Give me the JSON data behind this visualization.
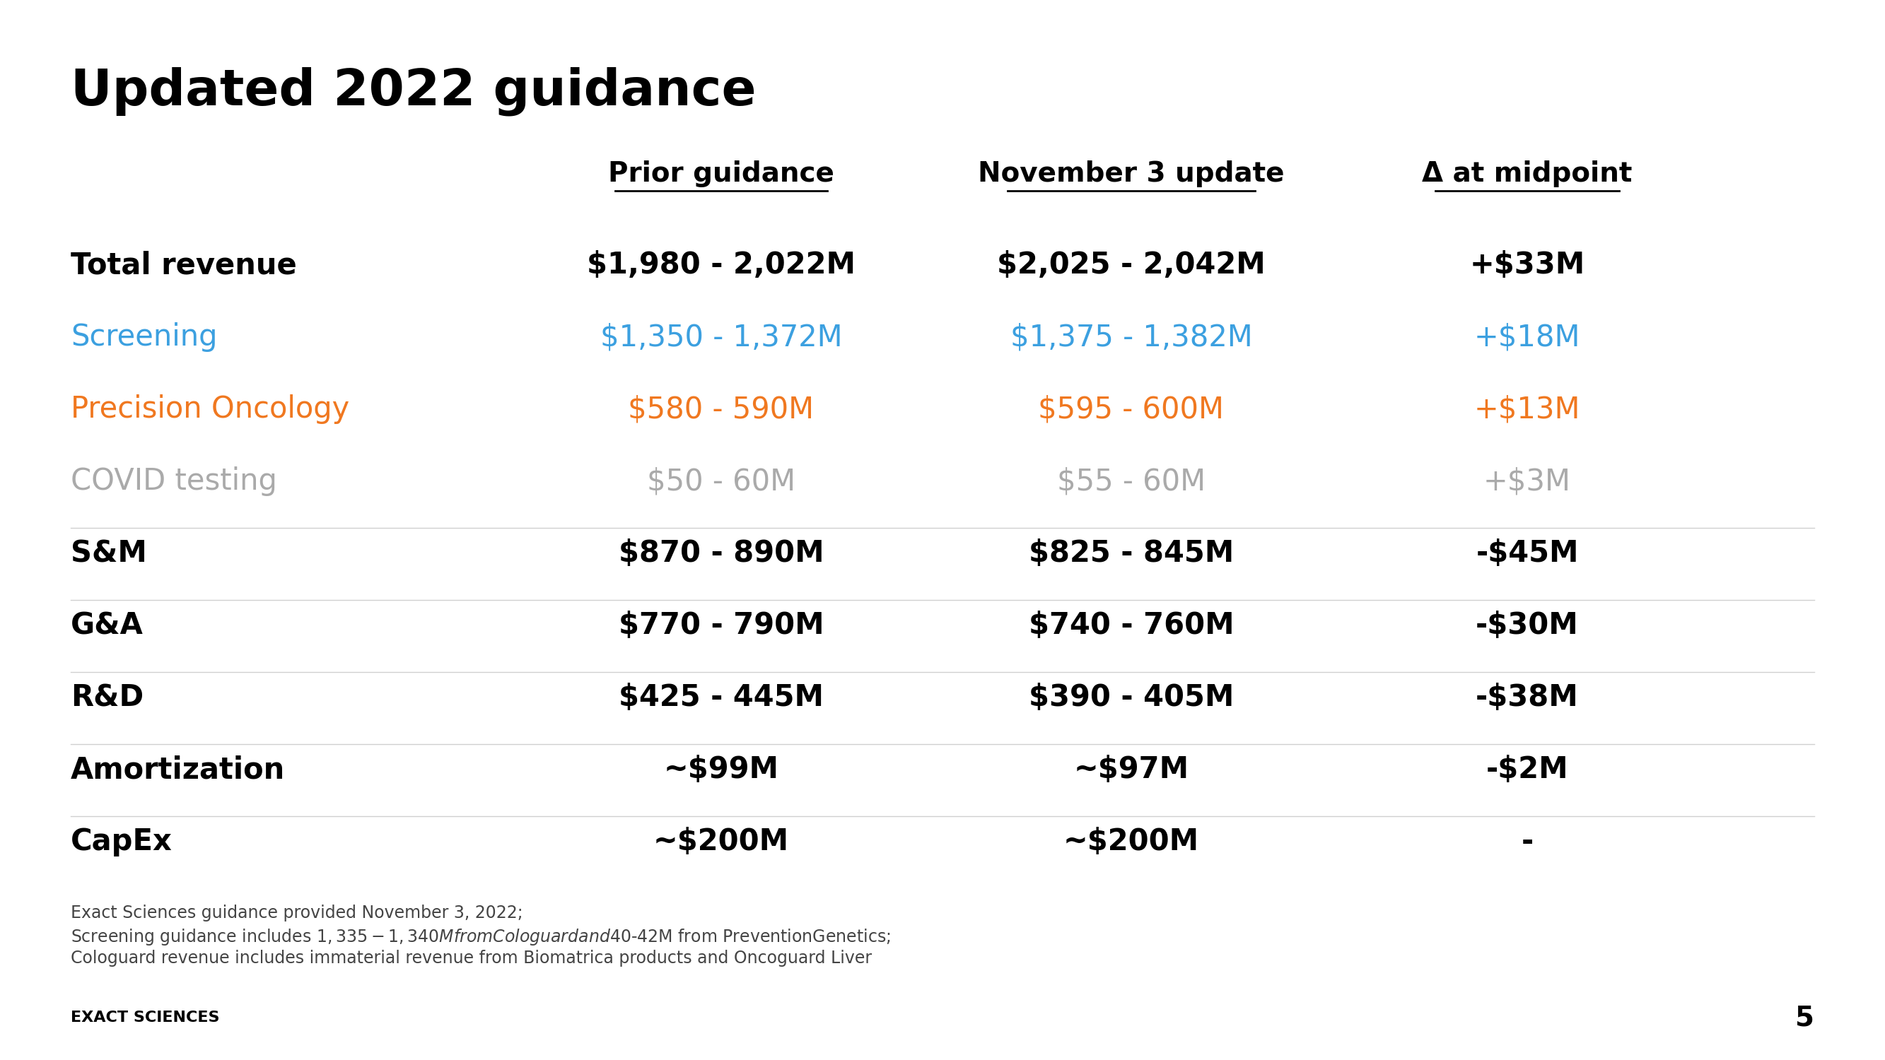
{
  "title": "Updated 2022 guidance",
  "background_color": "#ffffff",
  "title_color": "#000000",
  "title_fontsize": 52,
  "headers": [
    "",
    "Prior guidance",
    "November 3 update",
    "Δ at midpoint"
  ],
  "rows": [
    {
      "label": "Total revenue",
      "prior": "$1,980 - 2,022M",
      "nov3": "$2,025 - 2,042M",
      "delta": "+$33M",
      "label_color": "#000000",
      "data_color": "#000000",
      "label_bold": true,
      "data_bold": true,
      "separator_above": false,
      "indent": false
    },
    {
      "label": "Screening",
      "prior": "$1,350 - 1,372M",
      "nov3": "$1,375 - 1,382M",
      "delta": "+$18M",
      "label_color": "#3ca0e0",
      "data_color": "#3ca0e0",
      "label_bold": false,
      "data_bold": false,
      "separator_above": false,
      "indent": false
    },
    {
      "label": "Precision Oncology",
      "prior": "$580 - 590M",
      "nov3": "$595 - 600M",
      "delta": "+$13M",
      "label_color": "#f07820",
      "data_color": "#f07820",
      "label_bold": false,
      "data_bold": false,
      "separator_above": false,
      "indent": false
    },
    {
      "label": "COVID testing",
      "prior": "$50 - 60M",
      "nov3": "$55 - 60M",
      "delta": "+$3M",
      "label_color": "#aaaaaa",
      "data_color": "#aaaaaa",
      "label_bold": false,
      "data_bold": false,
      "separator_above": false,
      "indent": false
    },
    {
      "label": "S&M",
      "prior": "$870 - 890M",
      "nov3": "$825 - 845M",
      "delta": "-$45M",
      "label_color": "#000000",
      "data_color": "#000000",
      "label_bold": true,
      "data_bold": true,
      "separator_above": true,
      "indent": false
    },
    {
      "label": "G&A",
      "prior": "$770 - 790M",
      "nov3": "$740 - 760M",
      "delta": "-$30M",
      "label_color": "#000000",
      "data_color": "#000000",
      "label_bold": true,
      "data_bold": true,
      "separator_above": true,
      "indent": false
    },
    {
      "label": "R&D",
      "prior": "$425 - 445M",
      "nov3": "$390 - 405M",
      "delta": "-$38M",
      "label_color": "#000000",
      "data_color": "#000000",
      "label_bold": true,
      "data_bold": true,
      "separator_above": true,
      "indent": false
    },
    {
      "label": "Amortization",
      "prior": "~$99M",
      "nov3": "~$97M",
      "delta": "-$2M",
      "label_color": "#000000",
      "data_color": "#000000",
      "label_bold": true,
      "data_bold": true,
      "separator_above": true,
      "indent": false
    },
    {
      "label": "CapEx",
      "prior": "~$200M",
      "nov3": "~$200M",
      "delta": "-",
      "label_color": "#000000",
      "data_color": "#000000",
      "label_bold": true,
      "data_bold": true,
      "separator_above": true,
      "indent": false
    }
  ],
  "footnotes": [
    "Exact Sciences guidance provided November 3, 2022;",
    "Screening guidance includes $1,335-1,340M from Cologuard and $40-42M from PreventionGenetics;",
    "Cologuard revenue includes immaterial revenue from Biomatrica products and Oncoguard Liver"
  ],
  "footer_label": "EXACT SCIENCES",
  "page_number": "5"
}
